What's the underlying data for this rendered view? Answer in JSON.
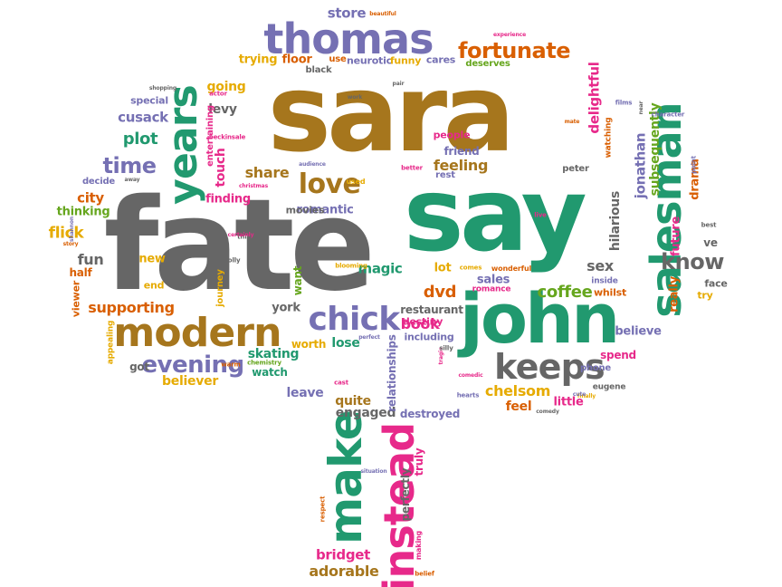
{
  "colors": {
    "green": "#21996f",
    "gray": "#666666",
    "brown": "#a6761d",
    "purple": "#7570b3",
    "pink": "#e7298a",
    "orange": "#d95f02",
    "lime": "#66a61e",
    "gold": "#e6ab02"
  },
  "words": [
    {
      "text": "sara",
      "color": "brown"
    },
    {
      "text": "fate",
      "color": "gray"
    },
    {
      "text": "say",
      "color": "green"
    },
    {
      "text": "john",
      "color": "green"
    },
    {
      "text": "thomas",
      "color": "purple"
    },
    {
      "text": "modern",
      "color": "brown"
    },
    {
      "text": "chick",
      "color": "purple"
    },
    {
      "text": "keeps",
      "color": "gray"
    },
    {
      "text": "years",
      "color": "green"
    },
    {
      "text": "salesman",
      "color": "green"
    },
    {
      "text": "make",
      "color": "green"
    },
    {
      "text": "instead",
      "color": "pink"
    },
    {
      "text": "love",
      "color": "brown"
    },
    {
      "text": "fortunate",
      "color": "orange"
    },
    {
      "text": "evening",
      "color": "purple"
    },
    {
      "text": "time",
      "color": "purple"
    },
    {
      "text": "know",
      "color": "gray"
    },
    {
      "text": "store",
      "color": "purple"
    },
    {
      "text": "beautiful",
      "color": "orange"
    },
    {
      "text": "trying",
      "color": "gold"
    },
    {
      "text": "floor",
      "color": "orange"
    },
    {
      "text": "use",
      "color": "orange"
    },
    {
      "text": "neurotic",
      "color": "purple"
    },
    {
      "text": "funny",
      "color": "gold"
    },
    {
      "text": "cares",
      "color": "purple"
    },
    {
      "text": "deserves",
      "color": "lime"
    },
    {
      "text": "experience",
      "color": "pink"
    },
    {
      "text": "black",
      "color": "gray"
    },
    {
      "text": "going",
      "color": "gold"
    },
    {
      "text": "levy",
      "color": "gray"
    },
    {
      "text": "special",
      "color": "purple"
    },
    {
      "text": "cusack",
      "color": "purple"
    },
    {
      "text": "plot",
      "color": "green"
    },
    {
      "text": "touch",
      "color": "pink"
    },
    {
      "text": "entertaining",
      "color": "pink"
    },
    {
      "text": "share",
      "color": "brown"
    },
    {
      "text": "finding",
      "color": "pink"
    },
    {
      "text": "city",
      "color": "orange"
    },
    {
      "text": "decide",
      "color": "purple"
    },
    {
      "text": "thinking",
      "color": "lime"
    },
    {
      "text": "flick",
      "color": "gold"
    },
    {
      "text": "fun",
      "color": "gray"
    },
    {
      "text": "half",
      "color": "orange"
    },
    {
      "text": "new",
      "color": "gold"
    },
    {
      "text": "end",
      "color": "gold"
    },
    {
      "text": "supporting",
      "color": "orange"
    },
    {
      "text": "romantic",
      "color": "purple"
    },
    {
      "text": "movies",
      "color": "gray"
    },
    {
      "text": "magic",
      "color": "green"
    },
    {
      "text": "restaurant",
      "color": "gray"
    },
    {
      "text": "destiny",
      "color": "pink"
    },
    {
      "text": "lot",
      "color": "gold"
    },
    {
      "text": "sales",
      "color": "purple"
    },
    {
      "text": "romance",
      "color": "pink"
    },
    {
      "text": "wonderful",
      "color": "orange"
    },
    {
      "text": "dvd",
      "color": "orange"
    },
    {
      "text": "book",
      "color": "pink"
    },
    {
      "text": "coffee",
      "color": "lime"
    },
    {
      "text": "sex",
      "color": "gray"
    },
    {
      "text": "inside",
      "color": "purple"
    },
    {
      "text": "whilst",
      "color": "orange"
    },
    {
      "text": "face",
      "color": "gray"
    },
    {
      "text": "try",
      "color": "gold"
    },
    {
      "text": "really",
      "color": "orange"
    },
    {
      "text": "future",
      "color": "pink"
    },
    {
      "text": "drama",
      "color": "orange"
    },
    {
      "text": "ve",
      "color": "gray"
    },
    {
      "text": "believe",
      "color": "purple"
    },
    {
      "text": "spend",
      "color": "pink"
    },
    {
      "text": "phone",
      "color": "purple"
    },
    {
      "text": "eugene",
      "color": "gray"
    },
    {
      "text": "chelsom",
      "color": "gold"
    },
    {
      "text": "little",
      "color": "pink"
    },
    {
      "text": "feel",
      "color": "orange"
    },
    {
      "text": "hilarious",
      "color": "gray"
    },
    {
      "text": "jonathan",
      "color": "purple"
    },
    {
      "text": "subsequently",
      "color": "lime"
    },
    {
      "text": "delightful",
      "color": "pink"
    },
    {
      "text": "feeling",
      "color": "brown"
    },
    {
      "text": "friend",
      "color": "purple"
    },
    {
      "text": "people",
      "color": "pink"
    },
    {
      "text": "rest",
      "color": "purple"
    },
    {
      "text": "watching",
      "color": "orange"
    },
    {
      "text": "peter",
      "color": "gray"
    },
    {
      "text": "york",
      "color": "gray"
    },
    {
      "text": "worth",
      "color": "gold"
    },
    {
      "text": "lose",
      "color": "green"
    },
    {
      "text": "including",
      "color": "purple"
    },
    {
      "text": "skating",
      "color": "green"
    },
    {
      "text": "watch",
      "color": "green"
    },
    {
      "text": "believer",
      "color": "gold"
    },
    {
      "text": "got",
      "color": "gray"
    },
    {
      "text": "leave",
      "color": "purple"
    },
    {
      "text": "quite",
      "color": "brown"
    },
    {
      "text": "engaged",
      "color": "gray"
    },
    {
      "text": "destroyed",
      "color": "purple"
    },
    {
      "text": "relationships",
      "color": "purple"
    },
    {
      "text": "truly",
      "color": "pink"
    },
    {
      "text": "perfectly",
      "color": "gray"
    },
    {
      "text": "bridget",
      "color": "pink"
    },
    {
      "text": "adorable",
      "color": "brown"
    },
    {
      "text": "want",
      "color": "lime"
    },
    {
      "text": "journey",
      "color": "gold"
    },
    {
      "text": "appealing",
      "color": "gold"
    },
    {
      "text": "viewer",
      "color": "orange"
    },
    {
      "text": "warm",
      "color": "orange"
    },
    {
      "text": "chemistry",
      "color": "lime"
    },
    {
      "text": "respect",
      "color": "orange"
    },
    {
      "text": "making",
      "color": "pink"
    },
    {
      "text": "belief",
      "color": "orange"
    },
    {
      "text": "situation",
      "color": "purple"
    },
    {
      "text": "cast",
      "color": "pink"
    },
    {
      "text": "perfect",
      "color": "purple"
    },
    {
      "text": "tragic",
      "color": "pink"
    },
    {
      "text": "hearts",
      "color": "purple"
    },
    {
      "text": "finally",
      "color": "gold"
    },
    {
      "text": "comedy",
      "color": "gray"
    },
    {
      "text": "think",
      "color": "gray"
    },
    {
      "text": "blooming",
      "color": "gold"
    },
    {
      "text": "comes",
      "color": "gold"
    },
    {
      "text": "used",
      "color": "gold"
    },
    {
      "text": "better",
      "color": "pink"
    },
    {
      "text": "audience",
      "color": "purple"
    },
    {
      "text": "away",
      "color": "gray"
    },
    {
      "text": "christmas",
      "color": "pink"
    },
    {
      "text": "certainly",
      "color": "pink"
    },
    {
      "text": "beckinsale",
      "color": "pink"
    },
    {
      "text": "actor",
      "color": "pink"
    },
    {
      "text": "shopping",
      "color": "gray"
    },
    {
      "text": "work",
      "color": "gray"
    },
    {
      "text": "pair",
      "color": "gray"
    },
    {
      "text": "live",
      "color": "pink"
    },
    {
      "text": "best",
      "color": "gray"
    },
    {
      "text": "point",
      "color": "purple"
    },
    {
      "text": "character",
      "color": "purple"
    },
    {
      "text": "near",
      "color": "gray"
    },
    {
      "text": "films",
      "color": "purple"
    },
    {
      "text": "mate",
      "color": "orange"
    },
    {
      "text": "cute",
      "color": "purple"
    },
    {
      "text": "shannon",
      "color": "purple"
    },
    {
      "text": "story",
      "color": "orange"
    },
    {
      "text": "comedic",
      "color": "pink"
    },
    {
      "text": "silly",
      "color": "gray"
    },
    {
      "text": "molly",
      "color": "gray"
    },
    {
      "text": "bloomingdale",
      "color": "gray"
    }
  ]
}
